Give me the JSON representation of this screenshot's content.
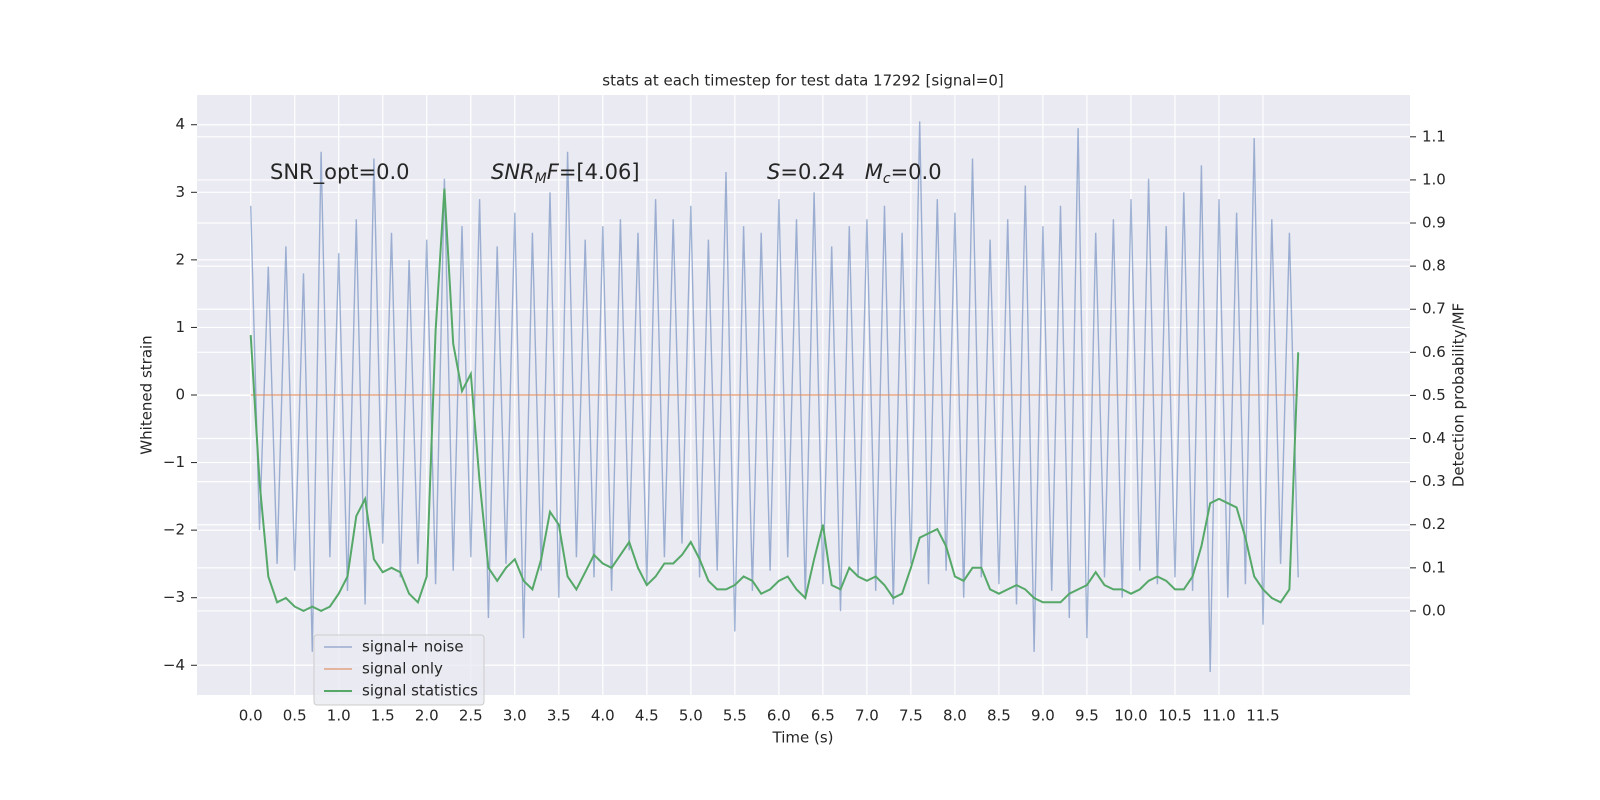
{
  "chart_data": {
    "type": "line",
    "title": "stats at each timestep for test data 17292 [signal=0]",
    "xlabel": "Time (s)",
    "ylabel": "Whitened strain",
    "y2label": "Detection probability/MF",
    "x": [
      0,
      0.1,
      0.2,
      0.3,
      0.4,
      0.5,
      0.6,
      0.7,
      0.8,
      0.9,
      1,
      1.1,
      1.2,
      1.3,
      1.4,
      1.5,
      1.6,
      1.7,
      1.8,
      1.9,
      2,
      2.1,
      2.2,
      2.3,
      2.4,
      2.5,
      2.6,
      2.7,
      2.8,
      2.9,
      3,
      3.1,
      3.2,
      3.3,
      3.4,
      3.5,
      3.6,
      3.7,
      3.8,
      3.9,
      4,
      4.1,
      4.2,
      4.3,
      4.4,
      4.5,
      4.6,
      4.7,
      4.8,
      4.9,
      5,
      5.1,
      5.2,
      5.3,
      5.4,
      5.5,
      5.6,
      5.7,
      5.8,
      5.9,
      6,
      6.1,
      6.2,
      6.3,
      6.4,
      6.5,
      6.6,
      6.7,
      6.8,
      6.9,
      7,
      7.1,
      7.2,
      7.3,
      7.4,
      7.5,
      7.6,
      7.7,
      7.8,
      7.9,
      8,
      8.1,
      8.2,
      8.3,
      8.4,
      8.5,
      8.6,
      8.7,
      8.8,
      8.9,
      9,
      9.1,
      9.2,
      9.3,
      9.4,
      9.5,
      9.6,
      9.7,
      9.8,
      9.9,
      10,
      10.1,
      10.2,
      10.3,
      10.4,
      10.5,
      10.6,
      10.7,
      10.8,
      10.9,
      11,
      11.1,
      11.2,
      11.3,
      11.4,
      11.5,
      11.6,
      11.7,
      11.8,
      11.9
    ],
    "series": [
      {
        "name": "signal+ noise",
        "color": "#4c72b0",
        "opacity": 0.5,
        "axis": "y",
        "values": [
          2.8,
          -2.0,
          1.9,
          -2.5,
          2.2,
          -2.6,
          1.8,
          -3.8,
          3.6,
          -2.4,
          2.1,
          -2.9,
          2.6,
          -3.1,
          3.5,
          -2.2,
          2.4,
          -2.7,
          2.0,
          -2.5,
          2.3,
          -2.8,
          3.2,
          -2.6,
          2.5,
          -2.4,
          2.9,
          -3.3,
          2.2,
          -2.5,
          2.7,
          -3.6,
          2.4,
          -2.6,
          3.0,
          -3.0,
          3.6,
          -2.4,
          2.3,
          -2.7,
          2.5,
          -2.9,
          2.6,
          -2.3,
          2.4,
          -2.8,
          2.9,
          -2.4,
          2.6,
          -2.2,
          2.8,
          -2.7,
          2.3,
          -2.6,
          3.3,
          -3.5,
          2.5,
          -2.9,
          2.4,
          -2.6,
          2.9,
          -2.4,
          2.6,
          -3.0,
          3.0,
          -2.8,
          2.2,
          -3.2,
          2.5,
          -2.7,
          2.6,
          -2.9,
          2.8,
          -3.1,
          2.4,
          -2.5,
          4.05,
          -2.8,
          2.9,
          -2.6,
          2.7,
          -3.0,
          3.5,
          -2.7,
          2.3,
          -2.8,
          2.6,
          -3.1,
          3.1,
          -3.8,
          2.5,
          -2.9,
          2.8,
          -3.3,
          3.95,
          -3.6,
          2.4,
          -2.7,
          2.6,
          -3.0,
          2.9,
          -2.6,
          3.2,
          -2.8,
          2.5,
          -2.7,
          3.0,
          -2.9,
          3.4,
          -4.1,
          2.9,
          -3.0,
          2.7,
          -2.8,
          3.8,
          -3.4,
          2.6,
          -2.5,
          2.4,
          -2.7
        ]
      },
      {
        "name": "signal only",
        "color": "#dd8452",
        "opacity": 0.7,
        "axis": "y",
        "values": [
          0,
          0,
          0,
          0,
          0,
          0,
          0,
          0,
          0,
          0,
          0,
          0,
          0,
          0,
          0,
          0,
          0,
          0,
          0,
          0,
          0,
          0,
          0,
          0,
          0,
          0,
          0,
          0,
          0,
          0,
          0,
          0,
          0,
          0,
          0,
          0,
          0,
          0,
          0,
          0,
          0,
          0,
          0,
          0,
          0,
          0,
          0,
          0,
          0,
          0,
          0,
          0,
          0,
          0,
          0,
          0,
          0,
          0,
          0,
          0,
          0,
          0,
          0,
          0,
          0,
          0,
          0,
          0,
          0,
          0,
          0,
          0,
          0,
          0,
          0,
          0,
          0,
          0,
          0,
          0,
          0,
          0,
          0,
          0,
          0,
          0,
          0,
          0,
          0,
          0,
          0,
          0,
          0,
          0,
          0,
          0,
          0,
          0,
          0,
          0,
          0,
          0,
          0,
          0,
          0,
          0,
          0,
          0,
          0,
          0,
          0,
          0,
          0,
          0,
          0,
          0,
          0,
          0,
          0,
          0
        ]
      },
      {
        "name": "signal statistics",
        "color": "#55a868",
        "opacity": 1,
        "axis": "y2",
        "values": [
          0.64,
          0.3,
          0.08,
          0.02,
          0.03,
          0.01,
          0.0,
          0.01,
          0.0,
          0.01,
          0.04,
          0.08,
          0.22,
          0.26,
          0.12,
          0.09,
          0.1,
          0.09,
          0.04,
          0.02,
          0.08,
          0.65,
          0.98,
          0.62,
          0.51,
          0.55,
          0.3,
          0.1,
          0.07,
          0.1,
          0.12,
          0.07,
          0.05,
          0.12,
          0.23,
          0.2,
          0.08,
          0.05,
          0.09,
          0.13,
          0.11,
          0.1,
          0.13,
          0.16,
          0.1,
          0.06,
          0.08,
          0.11,
          0.11,
          0.13,
          0.16,
          0.12,
          0.07,
          0.05,
          0.05,
          0.06,
          0.08,
          0.07,
          0.04,
          0.05,
          0.07,
          0.08,
          0.05,
          0.03,
          0.12,
          0.2,
          0.06,
          0.05,
          0.1,
          0.08,
          0.07,
          0.08,
          0.06,
          0.03,
          0.04,
          0.1,
          0.17,
          0.18,
          0.19,
          0.15,
          0.08,
          0.07,
          0.1,
          0.1,
          0.05,
          0.04,
          0.05,
          0.06,
          0.05,
          0.03,
          0.02,
          0.02,
          0.02,
          0.04,
          0.05,
          0.06,
          0.09,
          0.06,
          0.05,
          0.05,
          0.04,
          0.05,
          0.07,
          0.08,
          0.07,
          0.05,
          0.05,
          0.08,
          0.15,
          0.25,
          0.26,
          0.25,
          0.24,
          0.17,
          0.08,
          0.05,
          0.03,
          0.02,
          0.05,
          0.6
        ]
      }
    ],
    "annotations": [
      {
        "parts": [
          {
            "text": "SNR_opt=0.0"
          }
        ]
      },
      {
        "parts": [
          {
            "text": "SNR",
            "italic": true
          },
          {
            "text": "M",
            "italic": true,
            "sub": true
          },
          {
            "text": "F",
            "italic": true
          },
          {
            "text": "=[4.06]"
          }
        ]
      },
      {
        "parts": [
          {
            "text": "S",
            "italic": true
          },
          {
            "text": "=0.24   "
          },
          {
            "text": "M",
            "italic": true
          },
          {
            "text": "c",
            "italic": true,
            "sub": true
          },
          {
            "text": "=0.0"
          }
        ]
      }
    ],
    "xlim": [
      -0.61,
      13.17
    ],
    "ylim": [
      -4.44,
      4.44
    ],
    "y2lim": [
      -0.195,
      1.197
    ],
    "xticks": [
      {
        "value": 0,
        "label": "0.0"
      },
      0.5,
      {
        "value": 1,
        "label": "1.0"
      },
      1.5,
      {
        "value": 2,
        "label": "2.0"
      },
      2.5,
      {
        "value": 3,
        "label": "3.0"
      },
      3.5,
      {
        "value": 4,
        "label": "4.0"
      },
      4.5,
      {
        "value": 5,
        "label": "5.0"
      },
      5.5,
      {
        "value": 6,
        "label": "6.0"
      },
      6.5,
      {
        "value": 7,
        "label": "7.0"
      },
      7.5,
      {
        "value": 8,
        "label": "8.0"
      },
      8.5,
      {
        "value": 9,
        "label": "9.0"
      },
      9.5,
      {
        "value": 10,
        "label": "10.0"
      },
      10.5,
      {
        "value": 11,
        "label": "11.0"
      },
      11.5
    ],
    "yticks": [
      {
        "value": -4,
        "label": "−4"
      },
      {
        "value": -3,
        "label": "−3"
      },
      {
        "value": -2,
        "label": "−2"
      },
      {
        "value": -1,
        "label": "−1"
      },
      0,
      1,
      2,
      3,
      4
    ],
    "y2ticks": [
      {
        "value": 0,
        "label": "0.0"
      },
      0.1,
      0.2,
      0.3,
      0.4,
      0.5,
      0.6,
      0.7,
      0.8,
      0.9,
      {
        "value": 1,
        "label": "1.0"
      },
      1.1
    ],
    "grid": true,
    "legend": "lower left"
  }
}
